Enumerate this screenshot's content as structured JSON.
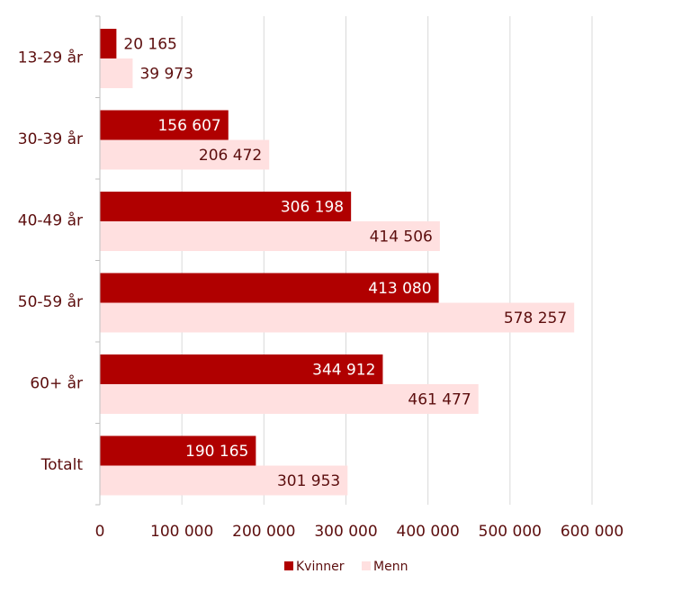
{
  "chart_data": {
    "type": "bar",
    "orientation": "horizontal",
    "categories": [
      "13-29 år",
      "30-39 år",
      "40-49 år",
      "50-59 år",
      "60+ år",
      "Totalt"
    ],
    "series": [
      {
        "name": "Kvinner",
        "color": "#b00000",
        "values": [
          20165,
          156607,
          306198,
          413080,
          344912,
          190165
        ],
        "labels": [
          "20 165",
          "156 607",
          "306 198",
          "413 080",
          "344 912",
          "190 165"
        ]
      },
      {
        "name": "Menn",
        "color": "#ffe0e0",
        "values": [
          39973,
          206472,
          414506,
          578257,
          461477,
          301953
        ],
        "labels": [
          "39 973",
          "206 472",
          "414 506",
          "578 257",
          "461 477",
          "301 953"
        ]
      }
    ],
    "xlim": [
      0,
      600000
    ],
    "x_ticks": [
      0,
      100000,
      200000,
      300000,
      400000,
      500000,
      600000
    ],
    "x_tick_labels": [
      "0",
      "100 000",
      "200 000",
      "300 000",
      "400 000",
      "500 000",
      "600 000"
    ],
    "grid": true,
    "legend_position": "bottom",
    "title": "",
    "xlabel": "",
    "ylabel": ""
  }
}
